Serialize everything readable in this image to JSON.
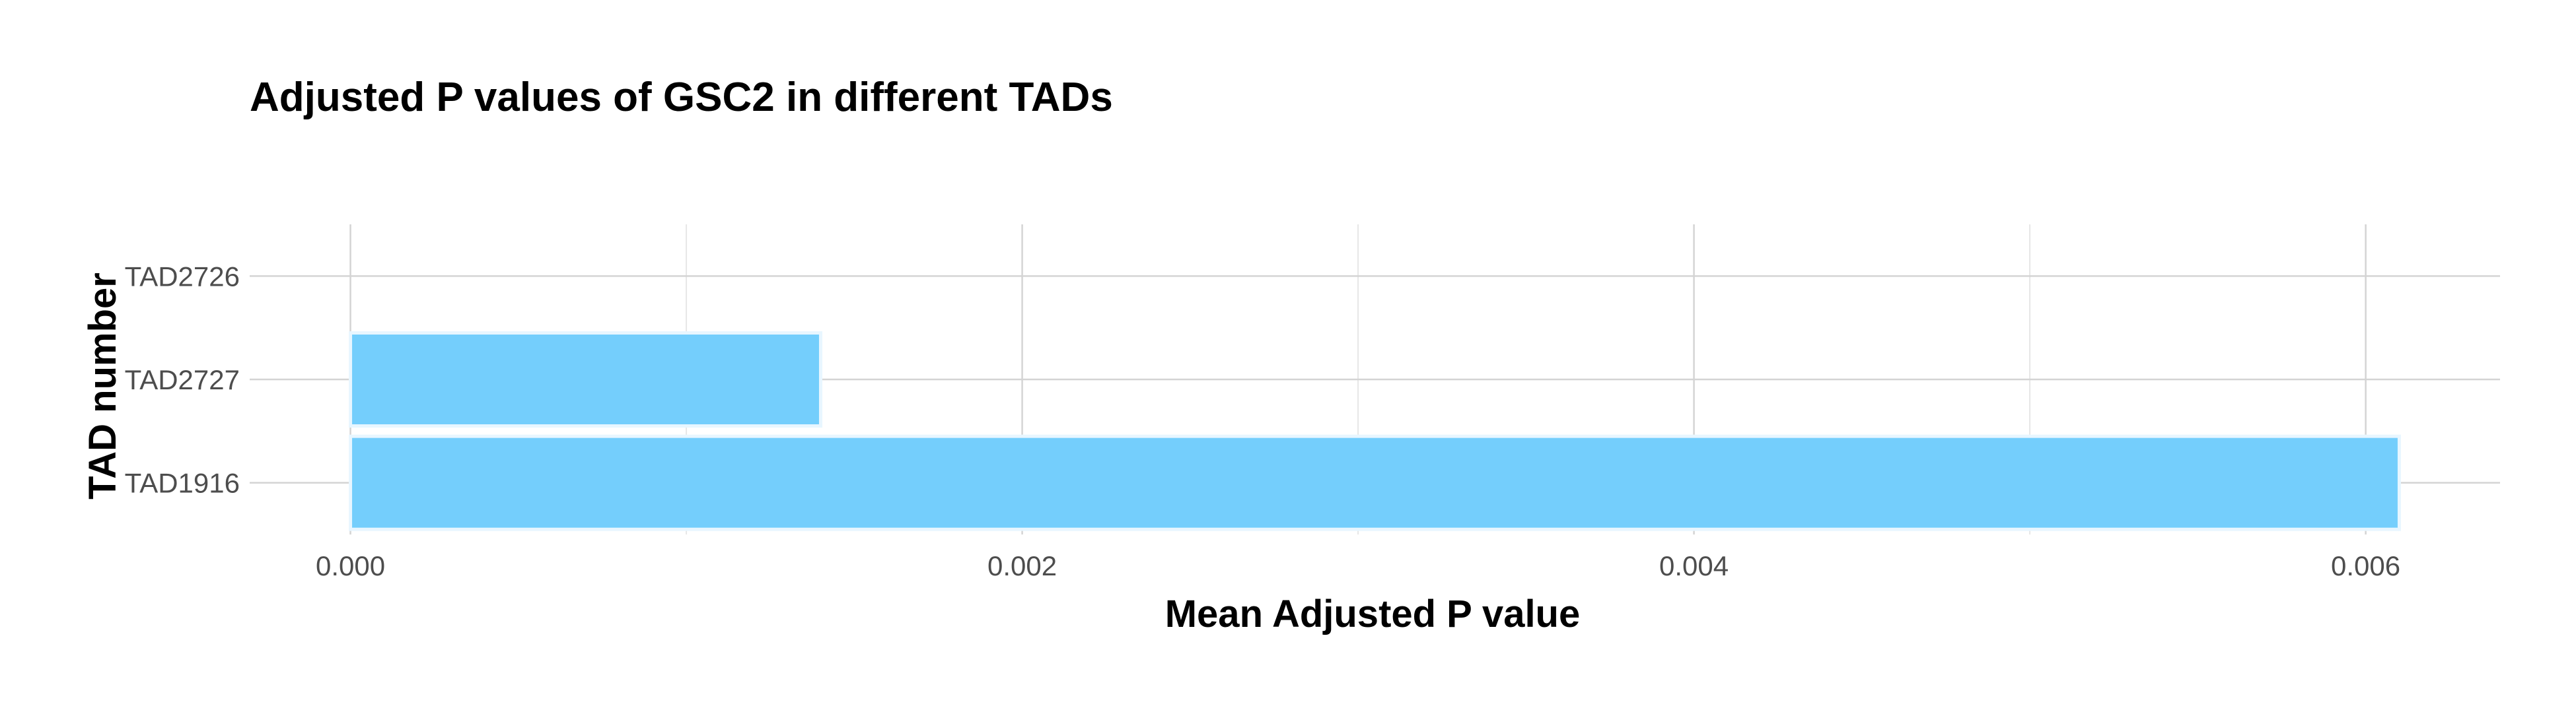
{
  "chart_data": {
    "type": "bar",
    "orientation": "horizontal",
    "title": "Adjusted P values of GSC2 in different TADs",
    "xlabel": "Mean Adjusted P value",
    "ylabel": "TAD number",
    "categories": [
      "TAD1916",
      "TAD2727",
      "TAD2726"
    ],
    "values": [
      0.0061,
      0.0014,
      0
    ],
    "xlim": [
      -0.0003,
      0.0064
    ],
    "xticks": [
      0.0,
      0.002,
      0.004,
      0.006
    ],
    "xtick_labels": [
      "0.000",
      "0.002",
      "0.004",
      "0.006"
    ],
    "grid": true,
    "bar_color": "#74cefc"
  }
}
